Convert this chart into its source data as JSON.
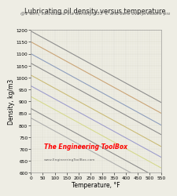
{
  "title": "Lubricating oil density versus temperature",
  "subtitle": "@1 atm, calculated via density@55°C and zero overpressure p₅₀",
  "xlabel": "Temperature, °F",
  "ylabel": "Density, kg/m3",
  "xlim": [
    0,
    550
  ],
  "ylim": [
    600,
    1200
  ],
  "xticks": [
    0,
    50,
    100,
    150,
    200,
    250,
    300,
    350,
    400,
    450,
    500,
    550
  ],
  "yticks": [
    600,
    650,
    700,
    750,
    800,
    850,
    900,
    950,
    1000,
    1050,
    1100,
    1150,
    1200
  ],
  "background_color": "#eeede4",
  "grid_color": "#ccccbb",
  "watermark_line1": "The Engineering ToolBox",
  "watermark_line2": "www.EngineeringToolBox.com",
  "lines": [
    {
      "y0": 1195,
      "color": "#888888"
    },
    {
      "y0": 1150,
      "color": "#c8a070"
    },
    {
      "y0": 1100,
      "color": "#8899bb"
    },
    {
      "y0": 1060,
      "color": "#888888"
    },
    {
      "y0": 1010,
      "color": "#c8b870"
    },
    {
      "y0": 965,
      "color": "#9999cc"
    },
    {
      "y0": 920,
      "color": "#d4d888"
    },
    {
      "y0": 870,
      "color": "#888888"
    },
    {
      "y0": 830,
      "color": "#aaaaaa"
    }
  ],
  "slope": -0.545,
  "title_fontsize": 6.0,
  "subtitle_fontsize": 4.2,
  "label_fontsize": 5.5,
  "tick_fontsize": 4.2,
  "watermark_fontsize1": 5.5,
  "watermark_fontsize2": 3.2,
  "line_lw": 0.8
}
